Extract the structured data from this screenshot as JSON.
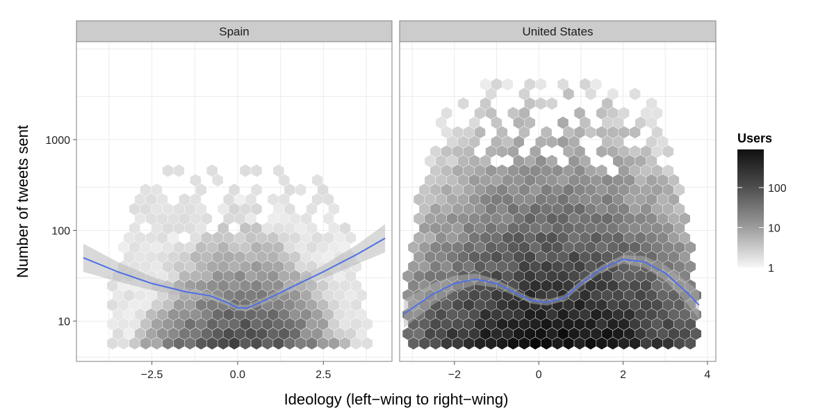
{
  "colors": {
    "panel_bg": "#ffffff",
    "panel_border": "#7f7f7f",
    "grid": "#ebebeb",
    "strip_bg": "#cccccc",
    "smooth_line": "#4f6fe6",
    "ribbon": "#b3b3b3",
    "hex_dark": "#000000",
    "hex_light": "#ffffff"
  },
  "chart_data": {
    "type": "heatmap",
    "subtype": "hexbin with loess smooth, faceted",
    "xlabel": "Ideology (left−wing to right−wing)",
    "ylabel": "Number of tweets sent",
    "y_scale": "log10",
    "ylim": [
      3.6,
      12000
    ],
    "y_ticks": [
      10,
      100,
      1000
    ],
    "y_tick_labels": [
      "10",
      "100",
      "1000"
    ],
    "legend": {
      "title": "Users",
      "scale": "log10",
      "range": [
        1,
        900
      ],
      "ticks": [
        1,
        10,
        100
      ],
      "tick_labels": [
        "1",
        "10",
        "100"
      ],
      "position": "right"
    },
    "panels": [
      {
        "name": "Spain",
        "xlim": [
          -4.7,
          4.5
        ],
        "x_ticks": [
          -2.5,
          0,
          2.5
        ],
        "x_tick_labels": [
          "−2.5",
          "0.0",
          "2.5"
        ],
        "density": {
          "x_range": [
            -3.8,
            3.8
          ],
          "y_range": [
            5.5,
            500
          ],
          "peak_x": 0.1,
          "spread_x": 1.6,
          "peak_users": 150
        },
        "smooth": {
          "x": [
            -4.5,
            -3.5,
            -2.5,
            -1.5,
            -0.8,
            -0.3,
            0.0,
            0.3,
            0.8,
            1.5,
            2.5,
            3.5,
            4.3
          ],
          "y": [
            50,
            35,
            26,
            21,
            19,
            16,
            14,
            14,
            17,
            23,
            35,
            55,
            82
          ]
        }
      },
      {
        "name": "United States",
        "xlim": [
          -3.3,
          4.2
        ],
        "x_ticks": [
          -2,
          0,
          2,
          4
        ],
        "x_tick_labels": [
          "−2",
          "0",
          "2",
          "4"
        ],
        "density": {
          "x_range": [
            -3.2,
            3.8
          ],
          "y_range": [
            5.5,
            5000
          ],
          "peak_x": 0.4,
          "spread_x": 2.2,
          "peak_users": 800
        },
        "smooth": {
          "x": [
            -3.2,
            -2.5,
            -2.0,
            -1.5,
            -1.0,
            -0.5,
            -0.2,
            0.2,
            0.6,
            1.0,
            1.5,
            2.0,
            2.5,
            3.0,
            3.5,
            3.8
          ],
          "y": [
            12,
            20,
            26,
            29,
            26,
            20,
            17,
            16,
            18,
            26,
            38,
            48,
            45,
            34,
            21,
            15
          ]
        }
      }
    ]
  }
}
